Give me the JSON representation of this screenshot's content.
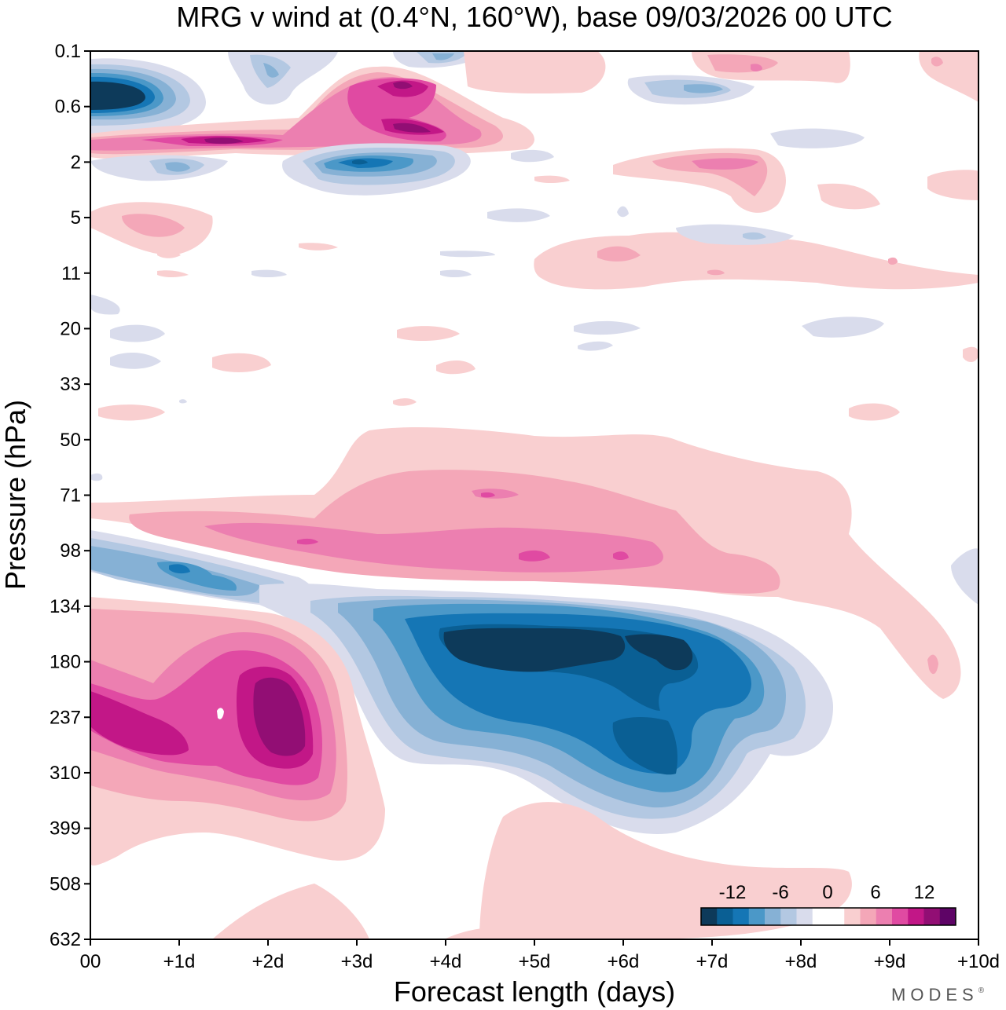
{
  "chart_data": {
    "type": "heatmap",
    "title": "MRG v wind at (0.4°N, 160°W),  base 09/03/2026  00 UTC",
    "xlabel": "Forecast length (days)",
    "ylabel": "Pressure (hPa)",
    "x_ticks": [
      "00",
      "+1d",
      "+2d",
      "+3d",
      "+4d",
      "+5d",
      "+6d",
      "+7d",
      "+8d",
      "+9d",
      "+10d"
    ],
    "x_range_days": [
      0,
      10
    ],
    "y_ticks": [
      "0.1",
      "0.6",
      "2",
      "5",
      "11",
      "20",
      "33",
      "50",
      "71",
      "98",
      "134",
      "180",
      "237",
      "310",
      "399",
      "508",
      "632"
    ],
    "y_scale": "log",
    "colorbar": {
      "tick_labels": [
        "-12",
        "-6",
        "0",
        "6",
        "12"
      ],
      "levels": [
        -16,
        -14,
        -12,
        -10,
        -8,
        -6,
        -4,
        -2,
        2,
        4,
        6,
        8,
        10,
        12,
        14,
        16
      ],
      "colors": [
        "#0d3a5a",
        "#0a5f94",
        "#1576b5",
        "#4b98c8",
        "#86b1d5",
        "#b3c8e2",
        "#d9dcec",
        "#ffffff",
        "#ffffff",
        "#f9cfd0",
        "#f4a7b8",
        "#ec7fb0",
        "#e04aa2",
        "#c21787",
        "#920e74",
        "#5e0466"
      ]
    },
    "features": [
      {
        "sign": "negative",
        "peak_ms": -15,
        "day_start": 0.0,
        "day_end": 0.9,
        "p_top_hPa": 0.3,
        "p_bottom_hPa": 1.0
      },
      {
        "sign": "positive",
        "peak_ms": 14,
        "day_start": 0.0,
        "day_end": 4.7,
        "p_top_hPa": 1.0,
        "p_bottom_hPa": 1.7
      },
      {
        "sign": "positive",
        "peak_ms": 15,
        "day_start": 2.7,
        "day_end": 4.0,
        "p_top_hPa": 0.2,
        "p_bottom_hPa": 1.4
      },
      {
        "sign": "negative",
        "peak_ms": -12,
        "day_start": 2.3,
        "day_end": 4.3,
        "p_top_hPa": 1.5,
        "p_bottom_hPa": 3.0
      },
      {
        "sign": "positive",
        "peak_ms": 8,
        "day_start": 0.5,
        "day_end": 8.5,
        "p_top_hPa": 50,
        "p_bottom_hPa": 140
      },
      {
        "sign": "negative",
        "peak_ms": -10,
        "day_start": 0.0,
        "day_end": 2.5,
        "p_top_hPa": 90,
        "p_bottom_hPa": 150
      },
      {
        "sign": "negative",
        "peak_ms": -16,
        "day_start": 3.0,
        "day_end": 8.3,
        "p_top_hPa": 130,
        "p_bottom_hPa": 420
      },
      {
        "sign": "positive",
        "peak_ms": 14,
        "day_start": 0.0,
        "day_end": 3.2,
        "p_top_hPa": 130,
        "p_bottom_hPa": 380
      }
    ]
  },
  "brand": {
    "text": "MODES",
    "mark": "®"
  }
}
